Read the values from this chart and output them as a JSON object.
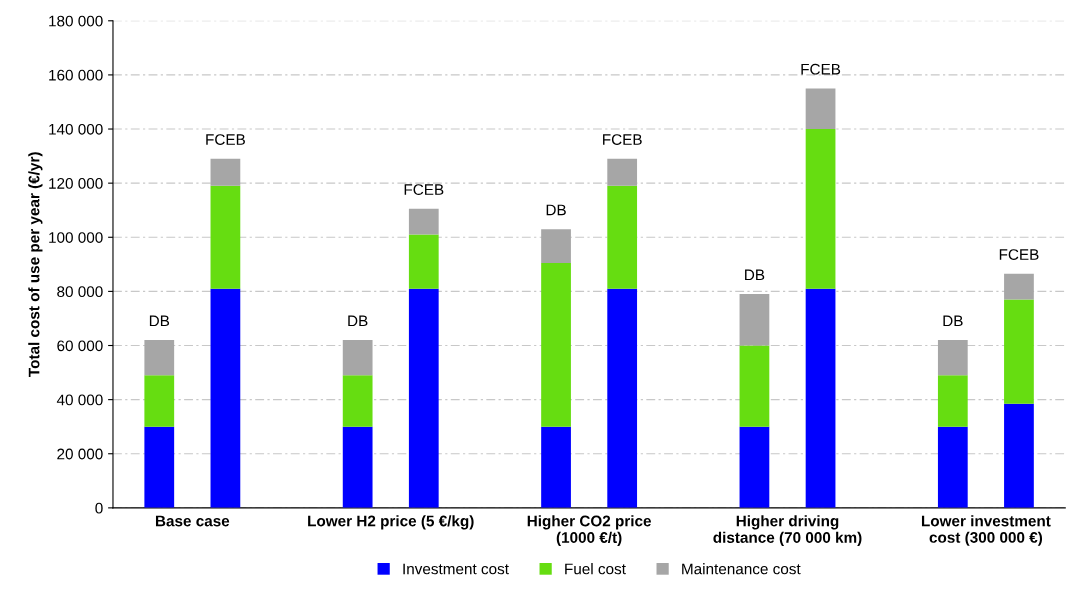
{
  "chart_data": {
    "type": "bar",
    "stacked": true,
    "ylabel": "Total cost of use per year (€/yr)",
    "categories": [
      "DB",
      "FCEB",
      "DB",
      "FCEB",
      "DB",
      "FCEB",
      "DB",
      "FCEB",
      "DB",
      "FCEB"
    ],
    "series": [
      {
        "name": "Investment cost",
        "color": "#0000ff",
        "values": [
          30000,
          81000,
          30000,
          81000,
          30000,
          81000,
          30000,
          81000,
          30000,
          38500
        ]
      },
      {
        "name": "Fuel cost",
        "color": "#66dd11",
        "values": [
          19000,
          38000,
          19000,
          20000,
          60500,
          38000,
          30000,
          59000,
          19000,
          38500
        ]
      },
      {
        "name": "Maintenance cost",
        "color": "#a6a6a6",
        "values": [
          13000,
          10000,
          13000,
          9500,
          12500,
          10000,
          19000,
          15000,
          13000,
          9500
        ]
      }
    ],
    "annotations": [
      "Base case",
      "Lower H2 price (5 €/kg)",
      "Higher CO2 price\n(1000 €/t)",
      "Higher driving\ndistance (70 000 km)",
      "Lower investment\ncost (300 000 €)"
    ],
    "ylim": [
      0,
      180000
    ],
    "yticks": [
      0,
      {
        "value": 20000,
        "label": "20 000"
      },
      {
        "value": 40000,
        "label": "40 000"
      },
      {
        "value": 60000,
        "label": "60 000"
      },
      {
        "value": 80000,
        "label": "80 000"
      },
      {
        "value": 100000,
        "label": "100 000"
      },
      {
        "value": 120000,
        "label": "120 000"
      },
      {
        "value": 140000,
        "label": "140 000"
      },
      {
        "value": 160000,
        "label": "160 000"
      },
      {
        "value": 180000,
        "label": "180 000"
      }
    ],
    "grid": "y",
    "legend": "bottom"
  }
}
